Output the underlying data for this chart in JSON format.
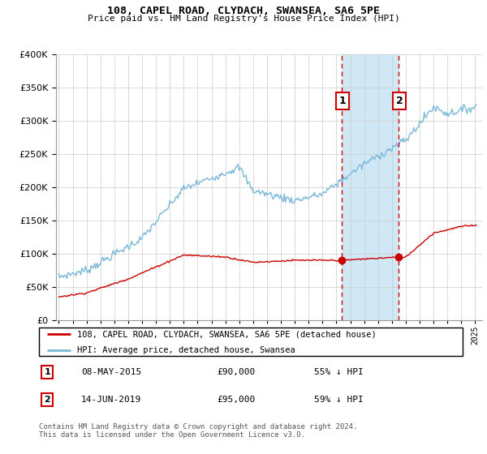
{
  "title": "108, CAPEL ROAD, CLYDACH, SWANSEA, SA6 5PE",
  "subtitle": "Price paid vs. HM Land Registry's House Price Index (HPI)",
  "legend_line1": "108, CAPEL ROAD, CLYDACH, SWANSEA, SA6 5PE (detached house)",
  "legend_line2": "HPI: Average price, detached house, Swansea",
  "annotation1_label": "1",
  "annotation1_date": "08-MAY-2015",
  "annotation1_price": "£90,000",
  "annotation1_hpi": "55% ↓ HPI",
  "annotation1_year": 2015.36,
  "annotation1_value": 90000,
  "annotation2_label": "2",
  "annotation2_date": "14-JUN-2019",
  "annotation2_price": "£95,000",
  "annotation2_hpi": "59% ↓ HPI",
  "annotation2_year": 2019.45,
  "annotation2_value": 95000,
  "hpi_color": "#7ab8d9",
  "price_color": "#cc0000",
  "shade_color": "#d0e8f5",
  "vline_color": "#cc0000",
  "footer": "Contains HM Land Registry data © Crown copyright and database right 2024.\nThis data is licensed under the Open Government Licence v3.0.",
  "ylim": [
    0,
    400000
  ],
  "yticks": [
    0,
    50000,
    100000,
    150000,
    200000,
    250000,
    300000,
    350000,
    400000
  ],
  "xlim": [
    1994.8,
    2025.5
  ]
}
